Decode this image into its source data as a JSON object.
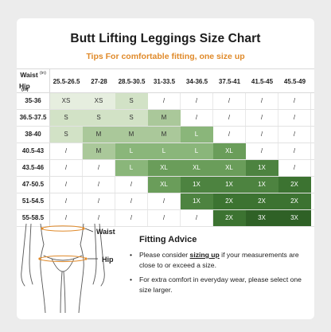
{
  "title": "Butt Lifting Leggings Size Chart",
  "subtitle": "Tips For comfortable fitting, one size up",
  "table": {
    "waist_label": "Waist",
    "hip_label": "Hip",
    "unit": "(in)",
    "columns": [
      "25.5-26.5",
      "27-28",
      "28.5-30.5",
      "31-33.5",
      "34-36.5",
      "37.5-41",
      "41.5-45",
      "45.5-49"
    ],
    "rows": [
      {
        "hip": "35-36",
        "cells": [
          "XS",
          "XS",
          "S",
          "/",
          "/",
          "/",
          "/",
          "/"
        ]
      },
      {
        "hip": "36.5-37.5",
        "cells": [
          "S",
          "S",
          "S",
          "M",
          "/",
          "/",
          "/",
          "/"
        ]
      },
      {
        "hip": "38-40",
        "cells": [
          "S",
          "M",
          "M",
          "M",
          "L",
          "/",
          "/",
          "/"
        ]
      },
      {
        "hip": "40.5-43",
        "cells": [
          "/",
          "M",
          "L",
          "L",
          "L",
          "XL",
          "/",
          "/"
        ]
      },
      {
        "hip": "43.5-46",
        "cells": [
          "/",
          "/",
          "L",
          "XL",
          "XL",
          "XL",
          "1X",
          "/"
        ]
      },
      {
        "hip": "47-50.5",
        "cells": [
          "/",
          "/",
          "/",
          "XL",
          "1X",
          "1X",
          "1X",
          "2X"
        ]
      },
      {
        "hip": "51-54.5",
        "cells": [
          "/",
          "/",
          "/",
          "/",
          "1X",
          "2X",
          "2X",
          "2X"
        ]
      },
      {
        "hip": "55-58.5",
        "cells": [
          "/",
          "/",
          "/",
          "/",
          "/",
          "2X",
          "3X",
          "3X"
        ]
      }
    ],
    "size_colors": {
      "XS": "#e6eedf",
      "S": "#d2e2c6",
      "M": "#aac89a",
      "L": "#8ab67a",
      "XL": "#6a9d5a",
      "1X": "#4d8340",
      "2X": "#3c7331",
      "3X": "#2f6126"
    }
  },
  "figure": {
    "waist_label": "Waist",
    "hip_label": "Hip"
  },
  "advice": {
    "title": "Fitting Advice",
    "bullet1_pre": "Please consider ",
    "bullet1_em": "sizing up",
    "bullet1_post": " if your measurements are close to or exceed a size.",
    "bullet2": "For extra comfort in everyday wear, please select one size larger."
  },
  "colors": {
    "accent": "#e08a2a"
  }
}
